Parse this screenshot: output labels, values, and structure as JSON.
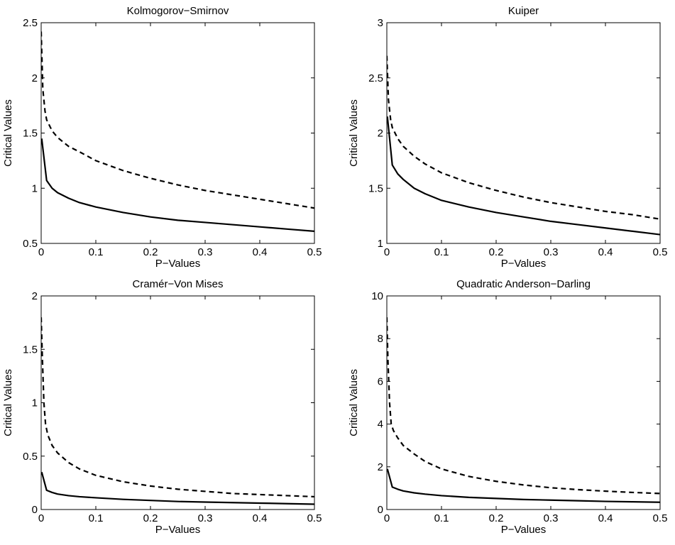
{
  "chart_data": [
    {
      "type": "line",
      "title": "Kolmogorov−Smirnov",
      "xlabel": "P−Values",
      "ylabel": "Critical Values",
      "xlim": [
        0,
        0.5
      ],
      "ylim": [
        0.5,
        2.5
      ],
      "xticks": [
        0,
        0.1,
        0.2,
        0.3,
        0.4,
        0.5
      ],
      "xtick_labels": [
        "0",
        "0.1",
        "0.2",
        "0.3",
        "0.4",
        "0.5"
      ],
      "yticks": [
        0.5,
        1,
        1.5,
        2,
        2.5
      ],
      "ytick_labels": [
        "0.5",
        "1",
        "1.5",
        "2",
        "2.5"
      ],
      "grid": false,
      "series": [
        {
          "style": "solid",
          "x": [
            0.001,
            0.01,
            0.02,
            0.03,
            0.05,
            0.07,
            0.1,
            0.15,
            0.2,
            0.25,
            0.3,
            0.35,
            0.4,
            0.45,
            0.5
          ],
          "y": [
            1.45,
            1.07,
            1.0,
            0.96,
            0.91,
            0.87,
            0.83,
            0.78,
            0.74,
            0.71,
            0.69,
            0.67,
            0.65,
            0.63,
            0.61
          ]
        },
        {
          "style": "dashed",
          "x": [
            0.0,
            0.003,
            0.007,
            0.01,
            0.02,
            0.03,
            0.05,
            0.07,
            0.1,
            0.15,
            0.2,
            0.25,
            0.3,
            0.35,
            0.4,
            0.45,
            0.5
          ],
          "y": [
            2.42,
            1.9,
            1.7,
            1.62,
            1.52,
            1.46,
            1.38,
            1.33,
            1.25,
            1.16,
            1.09,
            1.03,
            0.98,
            0.94,
            0.9,
            0.86,
            0.82
          ]
        }
      ]
    },
    {
      "type": "line",
      "title": "Kuiper",
      "xlabel": "P−Values",
      "ylabel": "Critical Values",
      "xlim": [
        0,
        0.5
      ],
      "ylim": [
        1,
        3
      ],
      "xticks": [
        0,
        0.1,
        0.2,
        0.3,
        0.4,
        0.5
      ],
      "xtick_labels": [
        "0",
        "0.1",
        "0.2",
        "0.3",
        "0.4",
        "0.5"
      ],
      "yticks": [
        1,
        1.5,
        2,
        2.5,
        3
      ],
      "ytick_labels": [
        "1",
        "1.5",
        "2",
        "2.5",
        "3"
      ],
      "grid": false,
      "series": [
        {
          "style": "solid",
          "x": [
            0.001,
            0.01,
            0.02,
            0.03,
            0.05,
            0.07,
            0.1,
            0.15,
            0.2,
            0.25,
            0.3,
            0.35,
            0.4,
            0.45,
            0.5
          ],
          "y": [
            2.15,
            1.71,
            1.63,
            1.58,
            1.5,
            1.45,
            1.39,
            1.33,
            1.28,
            1.24,
            1.2,
            1.17,
            1.14,
            1.11,
            1.08
          ]
        },
        {
          "style": "dashed",
          "x": [
            0.0,
            0.003,
            0.007,
            0.01,
            0.02,
            0.03,
            0.05,
            0.07,
            0.1,
            0.15,
            0.2,
            0.25,
            0.3,
            0.35,
            0.4,
            0.45,
            0.5
          ],
          "y": [
            2.7,
            2.3,
            2.12,
            2.05,
            1.95,
            1.88,
            1.79,
            1.72,
            1.64,
            1.55,
            1.48,
            1.42,
            1.37,
            1.33,
            1.29,
            1.26,
            1.22
          ]
        }
      ]
    },
    {
      "type": "line",
      "title": "Cramér−Von Mises",
      "xlabel": "P−Values",
      "ylabel": "Critical Values",
      "xlim": [
        0,
        0.5
      ],
      "ylim": [
        0,
        2
      ],
      "xticks": [
        0,
        0.1,
        0.2,
        0.3,
        0.4,
        0.5
      ],
      "xtick_labels": [
        "0",
        "0.1",
        "0.2",
        "0.3",
        "0.4",
        "0.5"
      ],
      "yticks": [
        0,
        0.5,
        1,
        1.5,
        2
      ],
      "ytick_labels": [
        "0",
        "0.5",
        "1",
        "1.5",
        "2"
      ],
      "grid": false,
      "series": [
        {
          "style": "solid",
          "x": [
            0.001,
            0.01,
            0.02,
            0.03,
            0.05,
            0.07,
            0.1,
            0.15,
            0.2,
            0.25,
            0.3,
            0.35,
            0.4,
            0.45,
            0.5
          ],
          "y": [
            0.35,
            0.18,
            0.16,
            0.145,
            0.13,
            0.12,
            0.11,
            0.095,
            0.085,
            0.075,
            0.07,
            0.065,
            0.06,
            0.055,
            0.05
          ]
        },
        {
          "style": "dashed",
          "x": [
            0.0,
            0.002,
            0.005,
            0.008,
            0.012,
            0.02,
            0.03,
            0.05,
            0.07,
            0.1,
            0.15,
            0.2,
            0.25,
            0.3,
            0.35,
            0.4,
            0.45,
            0.5
          ],
          "y": [
            1.8,
            1.45,
            1.0,
            0.8,
            0.7,
            0.6,
            0.53,
            0.44,
            0.38,
            0.32,
            0.26,
            0.22,
            0.19,
            0.17,
            0.15,
            0.14,
            0.13,
            0.12
          ]
        }
      ]
    },
    {
      "type": "line",
      "title": "Quadratic Anderson−Darling",
      "xlabel": "P−Values",
      "ylabel": "Critical Values",
      "xlim": [
        0,
        0.5
      ],
      "ylim": [
        0,
        10
      ],
      "xticks": [
        0,
        0.1,
        0.2,
        0.3,
        0.4,
        0.5
      ],
      "xtick_labels": [
        "0",
        "0.1",
        "0.2",
        "0.3",
        "0.4",
        "0.5"
      ],
      "yticks": [
        0,
        2,
        4,
        6,
        8,
        10
      ],
      "ytick_labels": [
        "0",
        "2",
        "4",
        "6",
        "8",
        "10"
      ],
      "grid": false,
      "series": [
        {
          "style": "solid",
          "x": [
            0.001,
            0.01,
            0.02,
            0.03,
            0.05,
            0.07,
            0.1,
            0.15,
            0.2,
            0.25,
            0.3,
            0.35,
            0.4,
            0.45,
            0.5
          ],
          "y": [
            1.9,
            1.05,
            0.95,
            0.87,
            0.78,
            0.72,
            0.65,
            0.57,
            0.52,
            0.47,
            0.44,
            0.41,
            0.38,
            0.36,
            0.34
          ]
        },
        {
          "style": "dashed",
          "x": [
            0.0,
            0.002,
            0.005,
            0.008,
            0.012,
            0.02,
            0.03,
            0.05,
            0.07,
            0.1,
            0.15,
            0.2,
            0.25,
            0.3,
            0.35,
            0.4,
            0.45,
            0.5
          ],
          "y": [
            9.0,
            7.0,
            5.0,
            4.0,
            3.7,
            3.35,
            3.0,
            2.6,
            2.25,
            1.9,
            1.55,
            1.32,
            1.15,
            1.02,
            0.93,
            0.86,
            0.8,
            0.75
          ]
        }
      ]
    }
  ]
}
